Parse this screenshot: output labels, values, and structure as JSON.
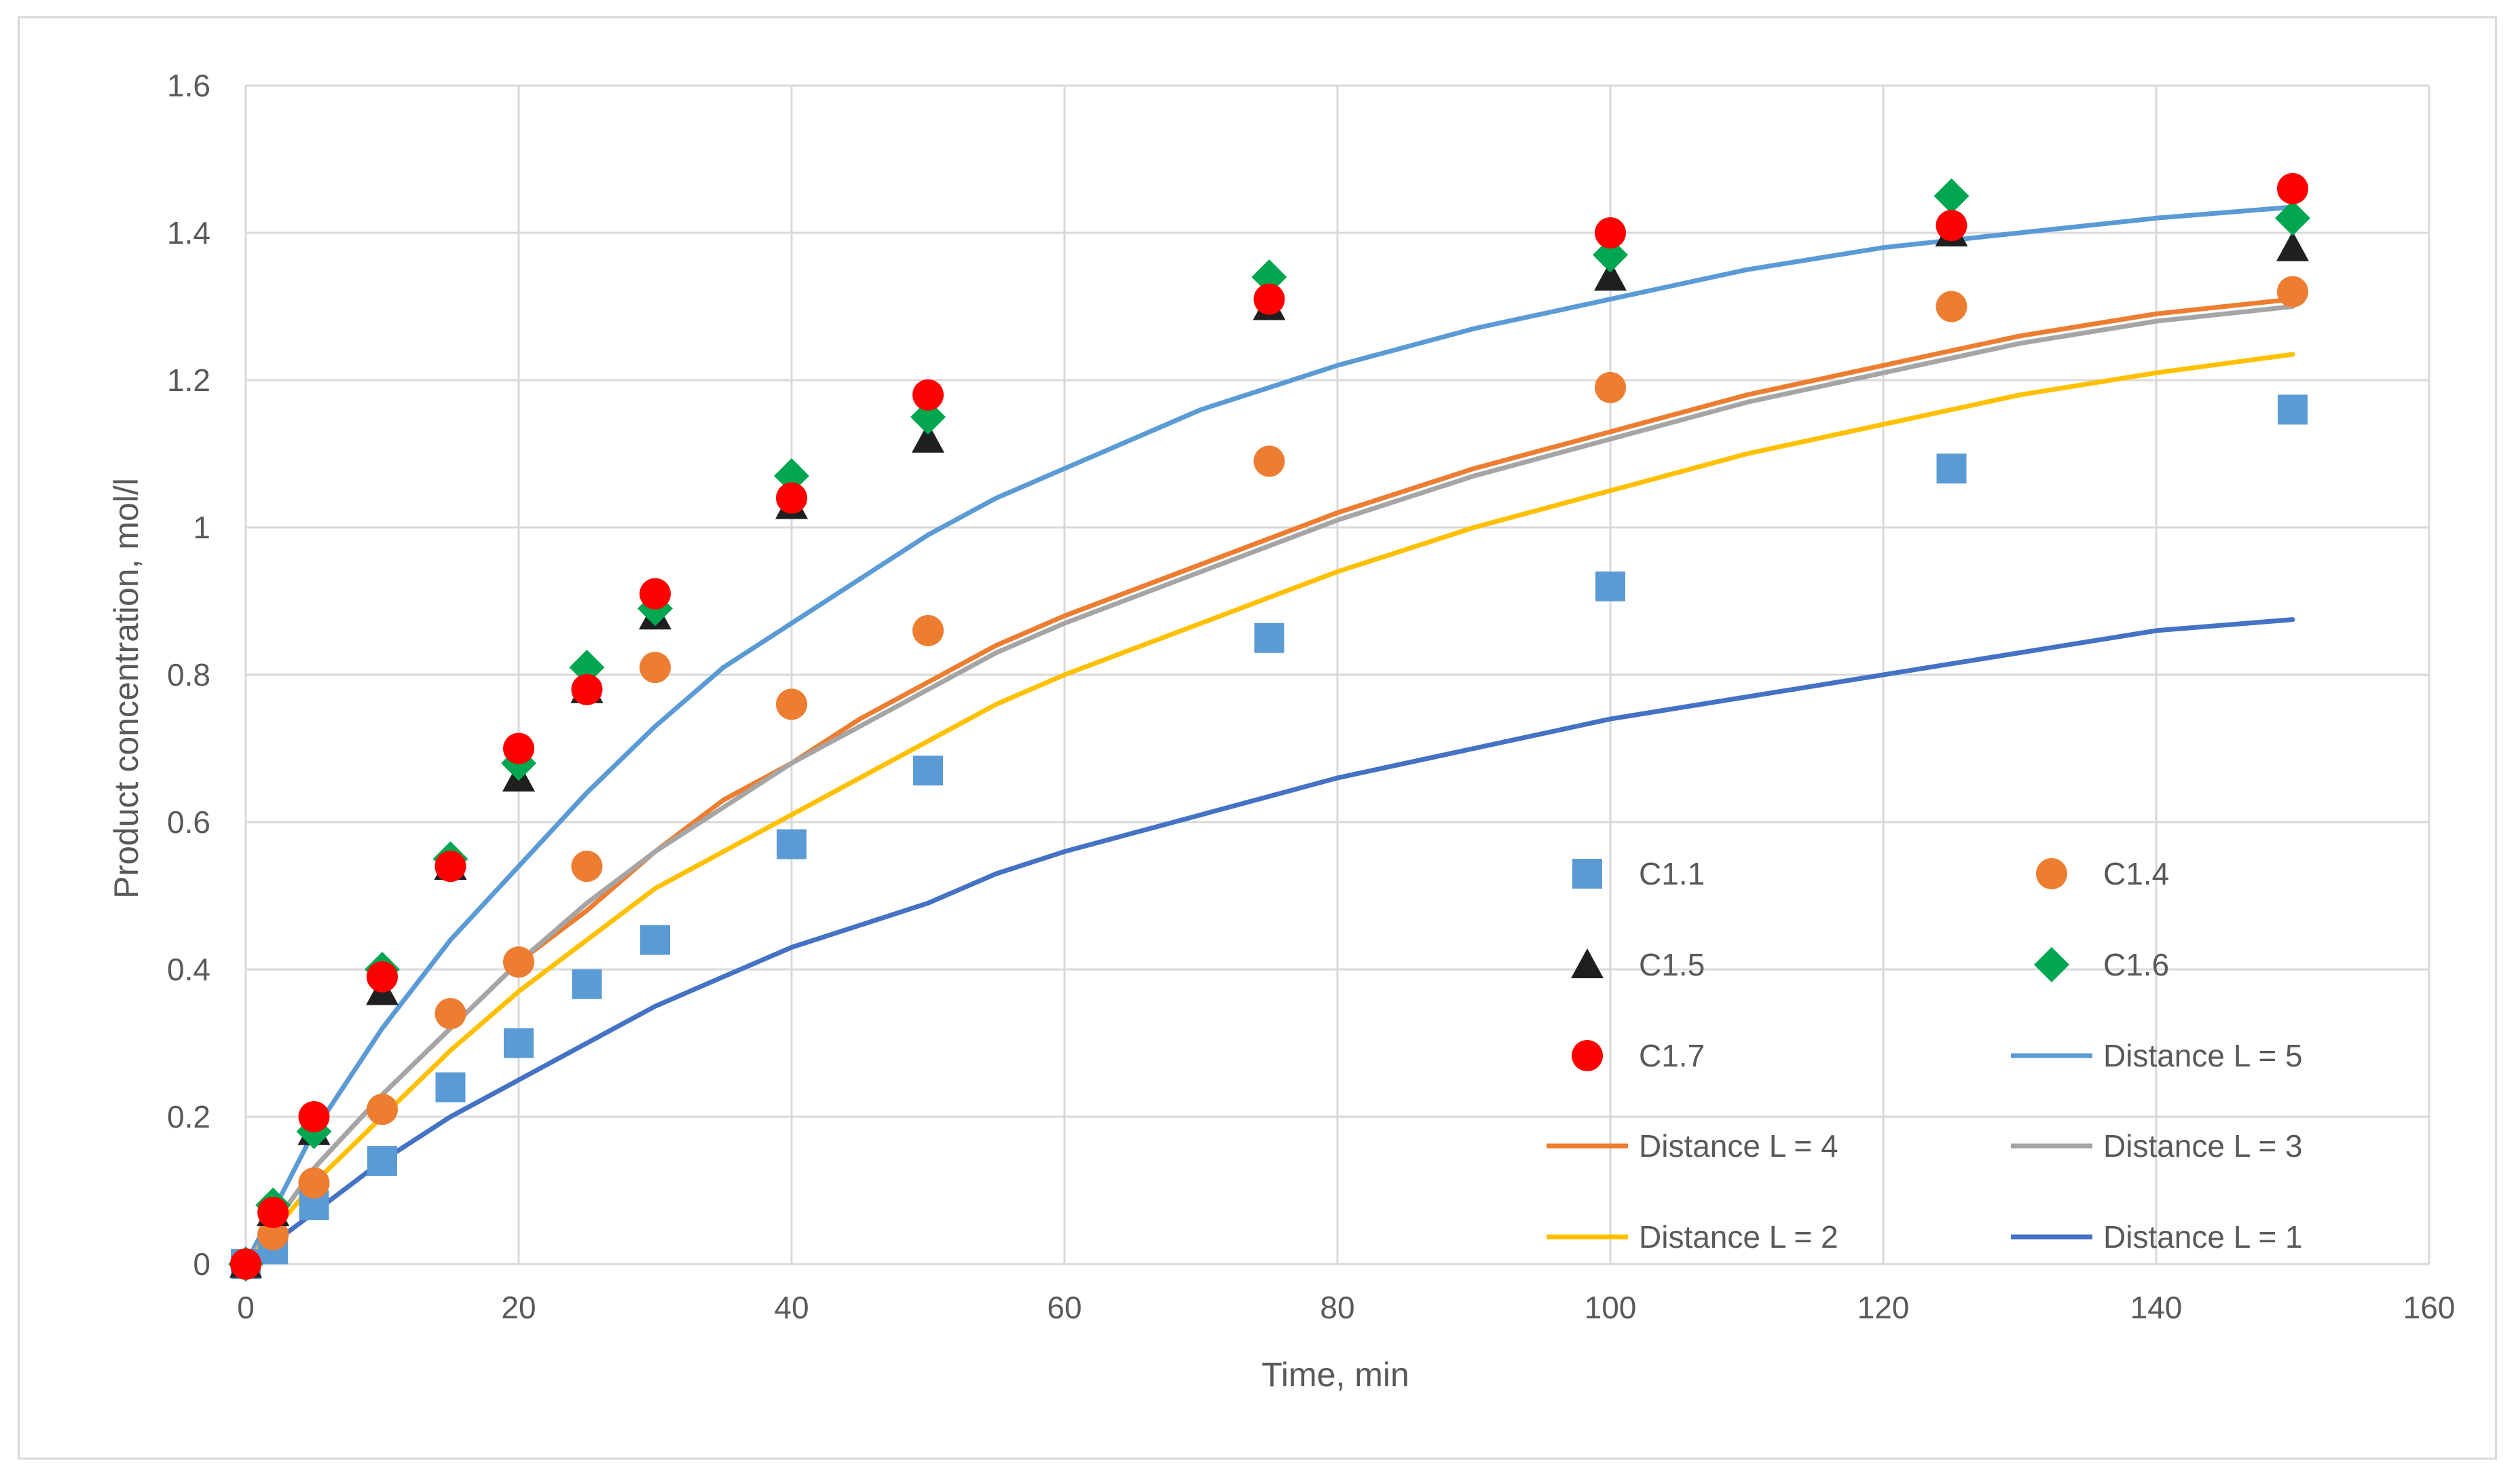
{
  "chart_data": {
    "type": "scatter",
    "title": "",
    "xlabel": "Time, min",
    "ylabel": "Product concentration, mol/l",
    "xlim": [
      0,
      160
    ],
    "ylim": [
      0,
      1.6
    ],
    "xticks": [
      0,
      20,
      40,
      60,
      80,
      100,
      120,
      140,
      160
    ],
    "yticks": [
      0,
      0.2,
      0.4,
      0.6,
      0.8,
      1,
      1.2,
      1.4,
      1.6
    ],
    "xtick_labels": [
      "0",
      "20",
      "40",
      "60",
      "80",
      "100",
      "120",
      "140",
      "160"
    ],
    "ytick_labels": [
      "0",
      "0.2",
      "0.4",
      "0.6",
      "0.8",
      "1",
      "1.2",
      "1.4",
      "1.6"
    ],
    "grid": true,
    "legend_position": "lower-right inside plot",
    "series": [
      {
        "name": "C1.1",
        "kind": "marker",
        "marker": "square",
        "color": "#5b9bd5",
        "x": [
          0,
          2,
          5,
          10,
          15,
          20,
          25,
          30,
          40,
          50,
          75,
          100,
          125,
          150
        ],
        "y": [
          0,
          0.02,
          0.08,
          0.14,
          0.24,
          0.3,
          0.38,
          0.44,
          0.57,
          0.67,
          0.85,
          0.92,
          1.08,
          1.16
        ]
      },
      {
        "name": "C1.4",
        "kind": "marker",
        "marker": "circle",
        "color": "#ed7d31",
        "x": [
          0,
          2,
          5,
          10,
          15,
          20,
          25,
          30,
          40,
          50,
          75,
          100,
          125,
          150
        ],
        "y": [
          0,
          0.04,
          0.11,
          0.21,
          0.34,
          0.41,
          0.54,
          0.81,
          0.76,
          0.86,
          1.09,
          1.19,
          1.3,
          1.32
        ]
      },
      {
        "name": "C1.5",
        "kind": "marker",
        "marker": "triangle",
        "color": "#1f1f1f",
        "x": [
          0,
          2,
          5,
          10,
          15,
          20,
          25,
          30,
          40,
          50,
          75,
          100,
          125,
          150
        ],
        "y": [
          0,
          0.07,
          0.18,
          0.37,
          0.54,
          0.66,
          0.78,
          0.88,
          1.03,
          1.12,
          1.3,
          1.34,
          1.4,
          1.38
        ]
      },
      {
        "name": "C1.6",
        "kind": "marker",
        "marker": "diamond",
        "color": "#00a650",
        "x": [
          0,
          2,
          5,
          10,
          15,
          20,
          25,
          30,
          40,
          50,
          75,
          100,
          125,
          150
        ],
        "y": [
          0,
          0.08,
          0.18,
          0.4,
          0.55,
          0.68,
          0.81,
          0.89,
          1.07,
          1.15,
          1.34,
          1.37,
          1.45,
          1.42
        ]
      },
      {
        "name": "C1.7",
        "kind": "marker",
        "marker": "circle",
        "color": "#ff0000",
        "x": [
          0,
          2,
          5,
          10,
          15,
          20,
          25,
          30,
          40,
          50,
          75,
          100,
          125,
          150
        ],
        "y": [
          0,
          0.07,
          0.2,
          0.39,
          0.54,
          0.7,
          0.78,
          0.91,
          1.04,
          1.18,
          1.31,
          1.4,
          1.41,
          1.46
        ]
      },
      {
        "name": "Distance L = 5",
        "kind": "line",
        "color": "#5b9bd5",
        "x": [
          0,
          5,
          10,
          15,
          20,
          25,
          30,
          35,
          40,
          45,
          50,
          55,
          60,
          70,
          80,
          90,
          100,
          110,
          120,
          130,
          140,
          150
        ],
        "y": [
          0,
          0.18,
          0.32,
          0.44,
          0.54,
          0.64,
          0.73,
          0.81,
          0.87,
          0.93,
          0.99,
          1.04,
          1.08,
          1.16,
          1.22,
          1.27,
          1.31,
          1.35,
          1.38,
          1.4,
          1.42,
          1.435
        ]
      },
      {
        "name": "Distance L = 4",
        "kind": "line",
        "color": "#ed7d31",
        "x": [
          0,
          5,
          10,
          15,
          20,
          25,
          30,
          35,
          40,
          45,
          50,
          55,
          60,
          70,
          80,
          90,
          100,
          110,
          120,
          130,
          140,
          150
        ],
        "y": [
          0,
          0.13,
          0.23,
          0.32,
          0.41,
          0.48,
          0.56,
          0.63,
          0.68,
          0.74,
          0.79,
          0.84,
          0.88,
          0.95,
          1.02,
          1.08,
          1.13,
          1.18,
          1.22,
          1.26,
          1.29,
          1.31
        ]
      },
      {
        "name": "Distance L = 3",
        "kind": "line",
        "color": "#a5a5a5",
        "x": [
          0,
          5,
          10,
          15,
          20,
          25,
          30,
          35,
          40,
          45,
          50,
          55,
          60,
          70,
          80,
          90,
          100,
          110,
          120,
          130,
          140,
          150
        ],
        "y": [
          0,
          0.13,
          0.23,
          0.32,
          0.41,
          0.49,
          0.56,
          0.62,
          0.68,
          0.73,
          0.78,
          0.83,
          0.87,
          0.94,
          1.01,
          1.07,
          1.12,
          1.17,
          1.21,
          1.25,
          1.28,
          1.3
        ]
      },
      {
        "name": "Distance L = 2",
        "kind": "line",
        "color": "#ffc000",
        "x": [
          0,
          5,
          10,
          15,
          20,
          25,
          30,
          35,
          40,
          45,
          50,
          55,
          60,
          70,
          80,
          90,
          100,
          110,
          120,
          130,
          140,
          150
        ],
        "y": [
          0,
          0.11,
          0.2,
          0.29,
          0.37,
          0.44,
          0.51,
          0.56,
          0.61,
          0.66,
          0.71,
          0.76,
          0.8,
          0.87,
          0.94,
          1.0,
          1.05,
          1.1,
          1.14,
          1.18,
          1.21,
          1.235
        ]
      },
      {
        "name": "Distance L = 1",
        "kind": "line",
        "color": "#4472c4",
        "x": [
          0,
          5,
          10,
          15,
          20,
          25,
          30,
          35,
          40,
          45,
          50,
          55,
          60,
          70,
          80,
          90,
          100,
          110,
          120,
          130,
          140,
          150
        ],
        "y": [
          0,
          0.07,
          0.14,
          0.2,
          0.25,
          0.3,
          0.35,
          0.39,
          0.43,
          0.46,
          0.49,
          0.53,
          0.56,
          0.61,
          0.66,
          0.7,
          0.74,
          0.77,
          0.8,
          0.83,
          0.86,
          0.875
        ]
      }
    ]
  }
}
